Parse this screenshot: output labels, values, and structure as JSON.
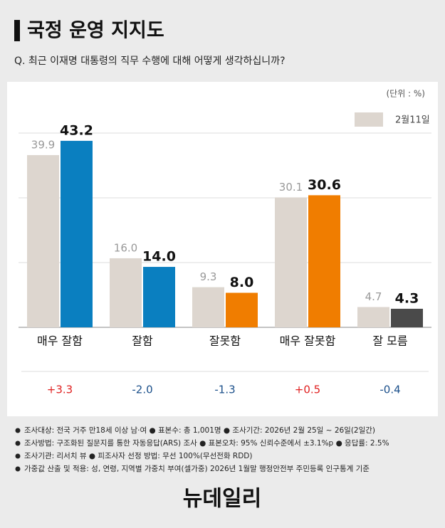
{
  "title": "국정 운영 지지도",
  "subtitle": "Q. 최근 이재명 대통령의 직무 수행에 대해 어떻게 생각하십니까?",
  "chart_data": {
    "type": "bar",
    "unit_note": "(단위 : %)",
    "categories": [
      "매우 잘함",
      "잘함",
      "잘못함",
      "매우 잘못함",
      "잘 모름"
    ],
    "series": [
      {
        "name": "2월11일",
        "color": "#ddd6cf",
        "values": [
          39.9,
          16.0,
          9.3,
          30.1,
          4.7
        ],
        "value_labels": [
          "39.9",
          "16.0",
          "9.3",
          "30.1",
          "4.7"
        ]
      },
      {
        "colors": [
          "#0a7fc0",
          "#0a7fc0",
          "#f07d00",
          "#f07d00",
          "#4a4a4a"
        ],
        "values": [
          43.2,
          14.0,
          8.0,
          30.6,
          4.3
        ],
        "value_labels": [
          "43.2",
          "14.0",
          "8.0",
          "30.6",
          "4.3"
        ]
      }
    ],
    "changes": [
      {
        "value": 3.3,
        "label": "+3.3"
      },
      {
        "value": -2.0,
        "label": "-2.0"
      },
      {
        "value": -1.3,
        "label": "-1.3"
      },
      {
        "value": 0.5,
        "label": "+0.5"
      },
      {
        "value": -0.4,
        "label": "-0.4"
      }
    ],
    "ylim": [
      0,
      45
    ],
    "yticks": [
      0,
      15,
      30,
      45
    ],
    "grid": true
  },
  "footnotes": [
    "조사대상: 전국 거주 만18세 이상 남·여  ● 표본수: 총 1,001명  ● 조사기간: 2026년 2월 25일 ~ 26일(2일간)",
    "조사방법: 구조화된 질문지를 통한 자동응답(ARS) 조사  ● 표본오차: 95% 신뢰수준에서 ±3.1%p  ● 응답률: 2.5%",
    "조사기관: 리서치 뷰  ● 피조사자 선정 방법: 무선 100%(무선전화 RDD)",
    "가중값 산출 및 적용: 성, 연령, 지역별 가중치 부여(셀가중) 2026년 1월말 행정안전부 주민등록 인구통계 기준"
  ],
  "logo": "뉴데일리"
}
